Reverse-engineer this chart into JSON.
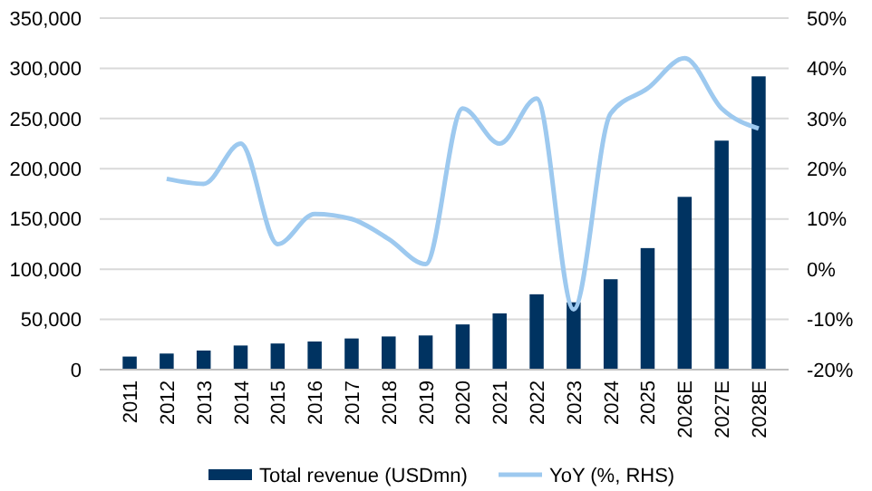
{
  "chart_data": {
    "type": "bar",
    "categories": [
      "2011",
      "2012",
      "2013",
      "2014",
      "2015",
      "2016",
      "2017",
      "2018",
      "2019",
      "2020",
      "2021",
      "2022",
      "2023",
      "2024",
      "2025",
      "2026E",
      "2027E",
      "2028E"
    ],
    "series": [
      {
        "name": "Total revenue (USDmn)",
        "color": "#003361",
        "values": [
          13000,
          16000,
          19000,
          24000,
          26000,
          28000,
          31000,
          33000,
          34000,
          45000,
          56000,
          75000,
          67000,
          90000,
          121000,
          172000,
          228000,
          292000
        ]
      },
      {
        "name": "YoY (%, RHS)",
        "type": "line",
        "axis": "y2",
        "color": "#9dc9ef",
        "values": [
          null,
          18,
          17,
          25,
          5,
          11,
          10,
          6,
          1,
          32,
          25,
          34,
          -8,
          31,
          36,
          42,
          32,
          28
        ]
      }
    ],
    "ylim": [
      0,
      350000
    ],
    "yticks": [
      {
        "value": 0,
        "label": "0"
      },
      {
        "value": 50000,
        "label": "50,000"
      },
      {
        "value": 100000,
        "label": "100,000"
      },
      {
        "value": 150000,
        "label": "150,000"
      },
      {
        "value": 200000,
        "label": "200,000"
      },
      {
        "value": 250000,
        "label": "250,000"
      },
      {
        "value": 300000,
        "label": "300,000"
      },
      {
        "value": 350000,
        "label": "350,000"
      }
    ],
    "y2lim": [
      -20,
      50
    ],
    "y2ticks": [
      {
        "value": -20,
        "label": "-20%"
      },
      {
        "value": -10,
        "label": "-10%"
      },
      {
        "value": 0,
        "label": "0%"
      },
      {
        "value": 10,
        "label": "10%"
      },
      {
        "value": 20,
        "label": "20%"
      },
      {
        "value": 30,
        "label": "30%"
      },
      {
        "value": 40,
        "label": "40%"
      },
      {
        "value": 50,
        "label": "50%"
      }
    ],
    "grid": "y",
    "legend": "bottom",
    "marker": "none",
    "line_style": "solid"
  }
}
